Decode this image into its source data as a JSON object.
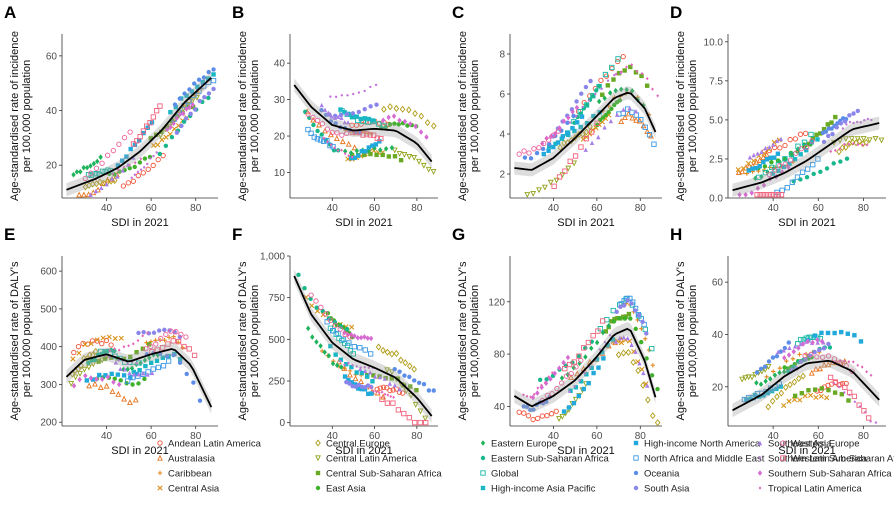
{
  "chart_data": [
    {
      "panel": "A",
      "type": "scatter",
      "ylabel": "Age-standardised rate of incidence\nper 100,000 population",
      "xlabel": "SDI in 2021",
      "xlim": [
        20,
        90
      ],
      "ylim": [
        8,
        68
      ],
      "xticks": [
        40,
        60,
        80
      ],
      "yticks": [
        20,
        40,
        60
      ],
      "trend": {
        "type": "line",
        "x": [
          22,
          35,
          45,
          55,
          65,
          75,
          87
        ],
        "y": [
          11,
          15,
          19,
          25,
          33,
          43,
          52
        ]
      }
    },
    {
      "panel": "B",
      "type": "scatter",
      "ylabel": "Age-standardised rate of incidence\nper 100,000 population",
      "xlabel": "SDI in 2021",
      "xlim": [
        20,
        90
      ],
      "ylim": [
        3,
        48
      ],
      "xticks": [
        40,
        60,
        80
      ],
      "yticks": [
        10,
        20,
        30,
        40
      ],
      "trend": {
        "type": "line",
        "x": [
          22,
          30,
          40,
          50,
          60,
          70,
          80,
          87
        ],
        "y": [
          34,
          28,
          23,
          21.5,
          22,
          21.5,
          18,
          13
        ]
      }
    },
    {
      "panel": "C",
      "type": "scatter",
      "ylabel": "Age-standardised rate of incidence\nper 100,000 population",
      "xlabel": "SDI in 2021",
      "xlim": [
        20,
        90
      ],
      "ylim": [
        0.8,
        9
      ],
      "xticks": [
        40,
        60,
        80
      ],
      "yticks": [
        2,
        4,
        6,
        8
      ],
      "trend": {
        "type": "line",
        "x": [
          22,
          30,
          40,
          50,
          60,
          68,
          75,
          82,
          87
        ],
        "y": [
          2.3,
          2.2,
          2.8,
          3.8,
          4.9,
          5.8,
          6.1,
          5.3,
          4.1
        ]
      }
    },
    {
      "panel": "D",
      "type": "scatter",
      "ylabel": "Age-standardised rate of incidence\nper 100,000 population",
      "xlabel": "SDI in 2021",
      "xlim": [
        20,
        90
      ],
      "ylim": [
        0,
        10.5
      ],
      "xticks": [
        40,
        60,
        80
      ],
      "yticks": [
        0.0,
        2.5,
        5.0,
        7.5,
        10.0
      ],
      "trend": {
        "type": "line",
        "x": [
          22,
          35,
          45,
          55,
          65,
          75,
          87
        ],
        "y": [
          0.5,
          1,
          1.6,
          2.4,
          3.4,
          4.4,
          4.8
        ]
      }
    },
    {
      "panel": "E",
      "type": "scatter",
      "ylabel": "Age-standardised rate of DALY's\nper 100,000 population",
      "xlabel": "SDI in 2021",
      "xlim": [
        20,
        90
      ],
      "ylim": [
        190,
        640
      ],
      "xticks": [
        40,
        60,
        80
      ],
      "yticks": [
        200,
        300,
        400,
        500,
        600
      ],
      "trend": {
        "type": "line",
        "x": [
          22,
          30,
          40,
          50,
          60,
          70,
          78,
          87
        ],
        "y": [
          320,
          365,
          380,
          360,
          380,
          395,
          350,
          240
        ]
      }
    },
    {
      "panel": "F",
      "type": "scatter",
      "ylabel": "Age-standardised rate of DALY's\nper 100,000 population",
      "xlabel": "SDI in 2021",
      "xlim": [
        20,
        90
      ],
      "ylim": [
        -20,
        1000
      ],
      "xticks": [
        40,
        60,
        80
      ],
      "yticks": [
        0,
        250,
        500,
        750,
        1000
      ],
      "ytick_labels": [
        "0",
        "250",
        "500",
        "750",
        "1,000"
      ],
      "trend": {
        "type": "line",
        "x": [
          22,
          30,
          40,
          50,
          60,
          70,
          80,
          87
        ],
        "y": [
          880,
          650,
          480,
          380,
          330,
          270,
          150,
          40
        ]
      }
    },
    {
      "panel": "G",
      "type": "scatter",
      "ylabel": "Age-standardised rate of DALY's\nper 100,000 population",
      "xlabel": "SDI in 2021",
      "xlim": [
        20,
        90
      ],
      "ylim": [
        25,
        155
      ],
      "xticks": [
        40,
        60,
        80
      ],
      "yticks": [
        40,
        80,
        120
      ],
      "trend": {
        "type": "line",
        "x": [
          22,
          30,
          40,
          50,
          60,
          68,
          75,
          82,
          87
        ],
        "y": [
          48,
          40,
          48,
          60,
          78,
          95,
          100,
          75,
          47
        ]
      }
    },
    {
      "panel": "H",
      "type": "scatter",
      "ylabel": "Age-standardised rate of DALY's\nper 100,000 population",
      "xlabel": "SDI in 2021",
      "xlim": [
        20,
        90
      ],
      "ylim": [
        5,
        70
      ],
      "xticks": [
        40,
        60,
        80
      ],
      "yticks": [
        20,
        40,
        60
      ],
      "trend": {
        "type": "line",
        "x": [
          22,
          35,
          45,
          55,
          65,
          75,
          87
        ],
        "y": [
          11,
          17,
          24,
          29,
          30,
          26,
          15
        ]
      }
    }
  ],
  "legend": [
    {
      "label": "Andean Latin America",
      "color": "#f0533a",
      "marker": "circle-open"
    },
    {
      "label": "Australasia",
      "color": "#e6741e",
      "marker": "triangle-open"
    },
    {
      "label": "Caribbean",
      "color": "#e08a1e",
      "marker": "plus"
    },
    {
      "label": "Central Asia",
      "color": "#d9941c",
      "marker": "x"
    },
    {
      "label": "Central Europe",
      "color": "#b09c17",
      "marker": "diamond-open"
    },
    {
      "label": "Central Latin America",
      "color": "#93a31d",
      "marker": "triangle-down-open"
    },
    {
      "label": "Central Sub-Saharan Africa",
      "color": "#6aa923",
      "marker": "square"
    },
    {
      "label": "East Asia",
      "color": "#3eb12b",
      "marker": "circle"
    },
    {
      "label": "Eastern Europe",
      "color": "#1fb35b",
      "marker": "diamond"
    },
    {
      "label": "Eastern Sub-Saharan Africa",
      "color": "#17b78b",
      "marker": "circle"
    },
    {
      "label": "Global",
      "color": "#17b9a8",
      "marker": "square-cross"
    },
    {
      "label": "High-income Asia Pacific",
      "color": "#19b6c4",
      "marker": "square"
    },
    {
      "label": "High-income North America",
      "color": "#22a9dc",
      "marker": "square"
    },
    {
      "label": "North Africa and Middle East",
      "color": "#3a98e4",
      "marker": "square-x"
    },
    {
      "label": "Oceania",
      "color": "#5c8de8",
      "marker": "circle"
    },
    {
      "label": "South Asia",
      "color": "#8a85ea",
      "marker": "circle"
    },
    {
      "label": "Southeast Asia",
      "color": "#a87ee8",
      "marker": "triangle"
    },
    {
      "label": "Southern Latin America",
      "color": "#c374dc",
      "marker": "small-dot"
    },
    {
      "label": "Southern Sub-Saharan Africa",
      "color": "#d66bd1",
      "marker": "diamond"
    },
    {
      "label": "Tropical Latin America",
      "color": "#e364b9",
      "marker": "small-diamond"
    },
    {
      "label": "Western Europe",
      "color": "#ec619a",
      "marker": "circle-open"
    },
    {
      "label": "Western Sub-Saharan Africa",
      "color": "#f0627c",
      "marker": "square-open"
    }
  ]
}
